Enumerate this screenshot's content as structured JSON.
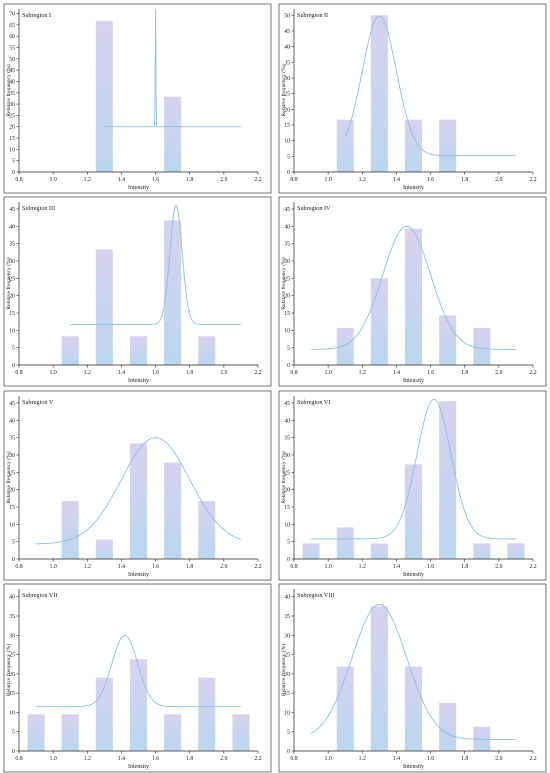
{
  "colors": {
    "bar_top": "#d8d2ee",
    "bar_bottom": "#bcd6ee",
    "curve": "#8fbfe6",
    "axis": "#222222",
    "panel_border": "#555555"
  },
  "chart_data": [
    {
      "type": "bar",
      "title": "Subregion I",
      "xlabel": "Intensity",
      "ylabel": "Relative frequency (%)",
      "xlim": [
        0.8,
        2.2
      ],
      "ylim": [
        0,
        72
      ],
      "xticks": [
        "0.8",
        "1.0",
        "1.2",
        "1.4",
        "1.6",
        "1.8",
        "2.0",
        "2.2"
      ],
      "yticks": [
        "0",
        "5",
        "10",
        "15",
        "20",
        "25",
        "30",
        "35",
        "40",
        "45",
        "50",
        "55",
        "60",
        "65",
        "70"
      ],
      "x": [
        1.3,
        1.7
      ],
      "values": [
        66.7,
        33.3
      ],
      "fit": {
        "baseline": 20,
        "amplitude": 52,
        "center": 1.6,
        "width": 0.002,
        "from": 1.3,
        "to": 2.1
      }
    },
    {
      "type": "bar",
      "title": "Subregion II",
      "xlabel": "Intensity",
      "ylabel": "Relative frequency (%)",
      "xlim": [
        0.8,
        2.2
      ],
      "ylim": [
        0,
        52
      ],
      "xticks": [
        "0.8",
        "1.0",
        "1.2",
        "1.4",
        "1.6",
        "1.8",
        "2.0",
        "2.2"
      ],
      "yticks": [
        "0",
        "5",
        "10",
        "15",
        "20",
        "25",
        "30",
        "35",
        "40",
        "45",
        "50"
      ],
      "x": [
        1.1,
        1.3,
        1.5,
        1.7
      ],
      "values": [
        16.7,
        50.0,
        16.7,
        16.7
      ],
      "fit": {
        "baseline": 5.2,
        "amplitude": 44.6,
        "center": 1.3,
        "width": 0.1,
        "from": 1.1,
        "to": 2.1
      }
    },
    {
      "type": "bar",
      "title": "Subregion III",
      "xlabel": "Intensity",
      "ylabel": "Relative frequency (%)",
      "xlim": [
        0.8,
        2.2
      ],
      "ylim": [
        0,
        47
      ],
      "xticks": [
        "0.8",
        "1.0",
        "1.2",
        "1.4",
        "1.6",
        "1.8",
        "2.0",
        "2.2"
      ],
      "yticks": [
        "0",
        "5",
        "10",
        "15",
        "20",
        "25",
        "30",
        "35",
        "40",
        "45"
      ],
      "x": [
        1.1,
        1.3,
        1.5,
        1.7,
        1.9
      ],
      "values": [
        8.3,
        33.3,
        8.3,
        41.7,
        8.3
      ],
      "fit": {
        "baseline": 11.7,
        "amplitude": 34.4,
        "center": 1.72,
        "width": 0.036,
        "from": 1.1,
        "to": 2.1
      }
    },
    {
      "type": "bar",
      "title": "Subregion IV",
      "xlabel": "Intensity",
      "ylabel": "Relative frequency (%)",
      "xlim": [
        0.8,
        2.2
      ],
      "ylim": [
        0,
        47
      ],
      "xticks": [
        "0.8",
        "1.0",
        "1.2",
        "1.4",
        "1.6",
        "1.8",
        "2.0",
        "2.2"
      ],
      "yticks": [
        "0",
        "5",
        "10",
        "15",
        "20",
        "25",
        "30",
        "35",
        "40",
        "45"
      ],
      "x": [
        1.1,
        1.3,
        1.5,
        1.7,
        1.9
      ],
      "values": [
        10.7,
        25.0,
        39.3,
        14.3,
        10.7
      ],
      "fit": {
        "baseline": 4.5,
        "amplitude": 35.5,
        "center": 1.46,
        "width": 0.14,
        "from": 0.9,
        "to": 2.1
      }
    },
    {
      "type": "bar",
      "title": "Subregion V",
      "xlabel": "Intensity",
      "ylabel": "Relative frequency (%)",
      "xlim": [
        0.8,
        2.2
      ],
      "ylim": [
        0,
        47
      ],
      "xticks": [
        "0.8",
        "1.0",
        "1.2",
        "1.4",
        "1.6",
        "1.8",
        "2.0",
        "2.2"
      ],
      "yticks": [
        "0",
        "5",
        "10",
        "15",
        "20",
        "25",
        "30",
        "35",
        "40",
        "45"
      ],
      "x": [
        1.1,
        1.3,
        1.5,
        1.7,
        1.9
      ],
      "values": [
        16.7,
        5.6,
        33.3,
        27.8,
        16.7
      ],
      "fit": {
        "baseline": 4.3,
        "amplitude": 30.7,
        "center": 1.6,
        "width": 0.2,
        "from": 0.9,
        "to": 2.1
      }
    },
    {
      "type": "bar",
      "title": "Subregion VI",
      "xlabel": "Intensity",
      "ylabel": "Relative frequency (%)",
      "xlim": [
        0.8,
        2.2
      ],
      "ylim": [
        0,
        47
      ],
      "xticks": [
        "0.8",
        "1.0",
        "1.2",
        "1.4",
        "1.6",
        "1.8",
        "2.0",
        "2.2"
      ],
      "yticks": [
        "0",
        "5",
        "10",
        "15",
        "20",
        "25",
        "30",
        "35",
        "40",
        "45"
      ],
      "x": [
        0.9,
        1.1,
        1.3,
        1.5,
        1.7,
        1.9,
        2.1
      ],
      "values": [
        4.5,
        9.1,
        4.5,
        27.3,
        45.5,
        4.5,
        4.5
      ],
      "fit": {
        "baseline": 5.8,
        "amplitude": 40.2,
        "center": 1.62,
        "width": 0.1,
        "from": 0.9,
        "to": 2.1
      }
    },
    {
      "type": "bar",
      "title": "Subregion VII",
      "xlabel": "Intensity",
      "ylabel": "Relative frequency (%)",
      "xlim": [
        0.8,
        2.2
      ],
      "ylim": [
        0,
        42
      ],
      "xticks": [
        "0.8",
        "1.0",
        "1.2",
        "1.4",
        "1.6",
        "1.8",
        "2.0",
        "2.2"
      ],
      "yticks": [
        "0",
        "5",
        "10",
        "15",
        "20",
        "25",
        "30",
        "35",
        "40"
      ],
      "x": [
        0.9,
        1.1,
        1.3,
        1.5,
        1.7,
        1.9,
        2.1
      ],
      "values": [
        9.5,
        9.5,
        19.0,
        23.8,
        9.5,
        19.0,
        9.5
      ],
      "fit": {
        "baseline": 11.5,
        "amplitude": 18.5,
        "center": 1.42,
        "width": 0.075,
        "from": 0.9,
        "to": 2.1
      }
    },
    {
      "type": "bar",
      "title": "Subregion VIII",
      "xlabel": "Intensity",
      "ylabel": "Relative frequency (%)",
      "xlim": [
        0.8,
        2.2
      ],
      "ylim": [
        0,
        42
      ],
      "xticks": [
        "0.8",
        "1.0",
        "1.2",
        "1.4",
        "1.6",
        "1.8",
        "2.0",
        "2.2"
      ],
      "yticks": [
        "0",
        "5",
        "10",
        "15",
        "20",
        "25",
        "30",
        "35",
        "40"
      ],
      "x": [
        1.1,
        1.3,
        1.5,
        1.7,
        1.9
      ],
      "values": [
        21.9,
        37.5,
        21.9,
        12.5,
        6.3
      ],
      "fit": {
        "baseline": 3.0,
        "amplitude": 35.0,
        "center": 1.3,
        "width": 0.16,
        "from": 0.9,
        "to": 2.1
      }
    }
  ]
}
